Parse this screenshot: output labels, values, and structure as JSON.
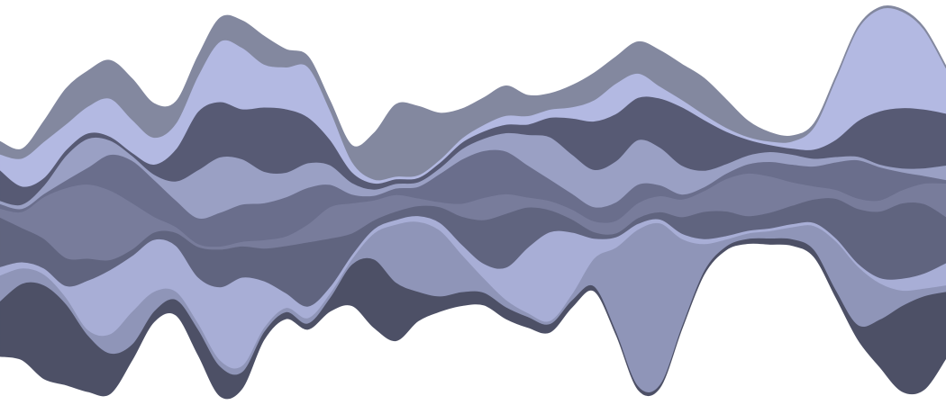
{
  "chart_data": {
    "type": "area",
    "subtype": "streamgraph",
    "baseline": "wiggle",
    "title": "",
    "xlabel": "",
    "ylabel": "",
    "axes_visible": false,
    "grid": false,
    "legend": "none",
    "n_points": 44,
    "series": [
      {
        "name": "",
        "color": "#4d5066",
        "values": [
          1.44,
          1.99,
          2.44,
          2.11,
          1.47,
          1.06,
          0.42,
          0.28,
          0.41,
          0.67,
          0.78,
          0.44,
          0.21,
          0.18,
          0.16,
          0.36,
          1.08,
          1.78,
          1.52,
          0.77,
          0.4,
          0.36,
          0.33,
          0.31,
          0.28,
          0.22,
          0.19,
          0.13,
          0.1,
          0.1,
          0.09,
          0.09,
          0.1,
          0.1,
          0.13,
          0.16,
          0.17,
          0.19,
          0.2,
          0.39,
          1.25,
          2.23,
          2.44,
          1.74
        ]
      },
      {
        "name": "",
        "color": "#8f95b8",
        "values": [
          0.67,
          0.4,
          0.28,
          0.17,
          0.14,
          0.5,
          0.85,
          0.51,
          0.21,
          0.16,
          0.16,
          0.16,
          0.11,
          0.11,
          0.14,
          0.11,
          0.14,
          0.68,
          1.51,
          1.82,
          1.71,
          0.97,
          0.37,
          0.19,
          0.1,
          0.08,
          0.16,
          0.72,
          2.17,
          4.07,
          4.19,
          2.25,
          0.7,
          0.18,
          0.14,
          0.19,
          0.31,
          0.62,
          1.27,
          1.52,
          0.94,
          0.4,
          0.2,
          0.17
        ]
      },
      {
        "name": "",
        "color": "#a8aed6",
        "values": [
          0.22,
          0.16,
          0.16,
          0.3,
          1.29,
          1.67,
          1.45,
          1.35,
          1.19,
          1.19,
          1.9,
          2.3,
          1.21,
          0.38,
          0.3,
          0.17,
          0.11,
          0.11,
          0.12,
          0.15,
          0.2,
          0.26,
          0.38,
          0.84,
          1.71,
          2.31,
          1.6,
          0.52,
          0.27,
          0.15,
          0.1,
          0.14,
          0.13,
          0.09,
          0.07,
          0.07,
          0.08,
          0.08,
          0.08,
          0.08,
          0.14,
          0.31,
          0.39,
          0.58
        ]
      },
      {
        "name": "",
        "color": "#60647f",
        "values": [
          1.29,
          0.89,
          0.77,
          0.73,
          0.57,
          0.26,
          0.17,
          0.19,
          0.34,
          0.79,
          0.98,
          0.81,
          0.85,
          1.23,
          1.67,
          1.26,
          0.56,
          0.23,
          0.22,
          0.26,
          0.41,
          0.73,
          1.14,
          1.4,
          1.04,
          0.57,
          0.34,
          0.17,
          0.1,
          0.15,
          0.19,
          0.43,
          0.71,
          0.64,
          0.38,
          0.41,
          0.48,
          0.61,
          1.03,
          1.42,
          1.73,
          1.96,
          1.81,
          1.2
        ]
      },
      {
        "name": "",
        "color": "#787c9b",
        "values": [
          0.23,
          0.42,
          1.09,
          1.82,
          1.93,
          1.81,
          1.21,
          0.41,
          0.15,
          0.08,
          0.08,
          0.12,
          0.22,
          0.25,
          0.47,
          0.82,
          0.78,
          0.52,
          0.43,
          0.2,
          0.13,
          0.34,
          0.58,
          0.51,
          0.26,
          0.24,
          0.26,
          0.28,
          0.33,
          0.39,
          0.42,
          0.46,
          0.54,
          0.84,
          1.11,
          0.94,
          0.61,
          0.34,
          0.23,
          0.27,
          0.29,
          0.34,
          0.53,
          0.87
        ]
      },
      {
        "name": "",
        "color": "#6a6e8c",
        "values": [
          0.12,
          0.08,
          0.08,
          0.2,
          0.44,
          0.93,
          1.1,
          0.96,
          0.69,
          0.67,
          0.88,
          0.97,
          0.96,
          1.02,
          0.95,
          0.58,
          0.23,
          0.12,
          0.17,
          0.3,
          0.74,
          1.15,
          1.22,
          1.11,
          0.83,
          0.56,
          0.41,
          0.37,
          0.48,
          0.48,
          0.28,
          0.13,
          0.1,
          0.14,
          0.24,
          0.38,
          0.46,
          0.52,
          0.72,
          1.0,
          0.86,
          0.47,
          0.2,
          0.09
        ]
      },
      {
        "name": "",
        "color": "#9aa0c4",
        "values": [
          0.08,
          0.11,
          0.22,
          0.64,
          0.75,
          0.37,
          0.13,
          0.14,
          0.5,
          1.25,
          1.44,
          1.18,
          0.82,
          0.64,
          0.64,
          0.51,
          0.3,
          0.16,
          0.12,
          0.12,
          0.15,
          0.27,
          0.32,
          0.48,
          0.8,
          1.1,
          1.02,
          0.97,
          1.07,
          1.16,
          0.98,
          0.75,
          0.43,
          0.25,
          0.23,
          0.26,
          0.26,
          0.2,
          0.14,
          0.09,
          0.07,
          0.1,
          0.2,
          0.38
        ]
      },
      {
        "name": "",
        "color": "#575a74",
        "values": [
          0.8,
          0.47,
          0.2,
          0.15,
          0.14,
          0.1,
          0.08,
          0.26,
          0.84,
          1.52,
          1.44,
          1.3,
          1.67,
          1.65,
          1.19,
          0.66,
          0.28,
          0.16,
          0.12,
          0.11,
          0.14,
          0.17,
          0.19,
          0.22,
          0.27,
          0.51,
          0.94,
          1.26,
          1.23,
          1.1,
          1.28,
          1.52,
          1.32,
          0.85,
          0.41,
          0.18,
          0.16,
          0.24,
          0.45,
          0.93,
          1.39,
          1.57,
          1.53,
          1.35
        ]
      },
      {
        "name": "",
        "color": "#b3b9e2",
        "values": [
          0.41,
          0.73,
          0.94,
          0.67,
          0.7,
          0.99,
          0.86,
          0.7,
          0.67,
          0.93,
          1.57,
          1.6,
          1.12,
          1.09,
          1.31,
          0.77,
          0.27,
          0.1,
          0.07,
          0.07,
          0.08,
          0.11,
          0.17,
          0.23,
          0.22,
          0.21,
          0.29,
          0.55,
          0.79,
          0.63,
          0.31,
          0.19,
          0.14,
          0.1,
          0.07,
          0.09,
          0.18,
          0.58,
          1.59,
          2.4,
          2.65,
          2.51,
          2.08,
          1.18
        ]
      },
      {
        "name": "",
        "color": "#83889f",
        "values": [
          0.33,
          0.24,
          0.53,
          0.92,
          0.92,
          0.99,
          1.06,
          0.88,
          0.56,
          0.51,
          0.61,
          0.7,
          0.73,
          0.46,
          0.27,
          0.24,
          0.42,
          1.2,
          1.87,
          1.79,
          1.2,
          0.76,
          0.7,
          0.77,
          0.53,
          0.41,
          0.56,
          0.7,
          0.69,
          0.82,
          0.93,
          0.92,
          0.94,
          0.73,
          0.41,
          0.23,
          0.14,
          0.09,
          0.06,
          0.05,
          0.05,
          0.05,
          0.05,
          0.05
        ]
      }
    ]
  }
}
